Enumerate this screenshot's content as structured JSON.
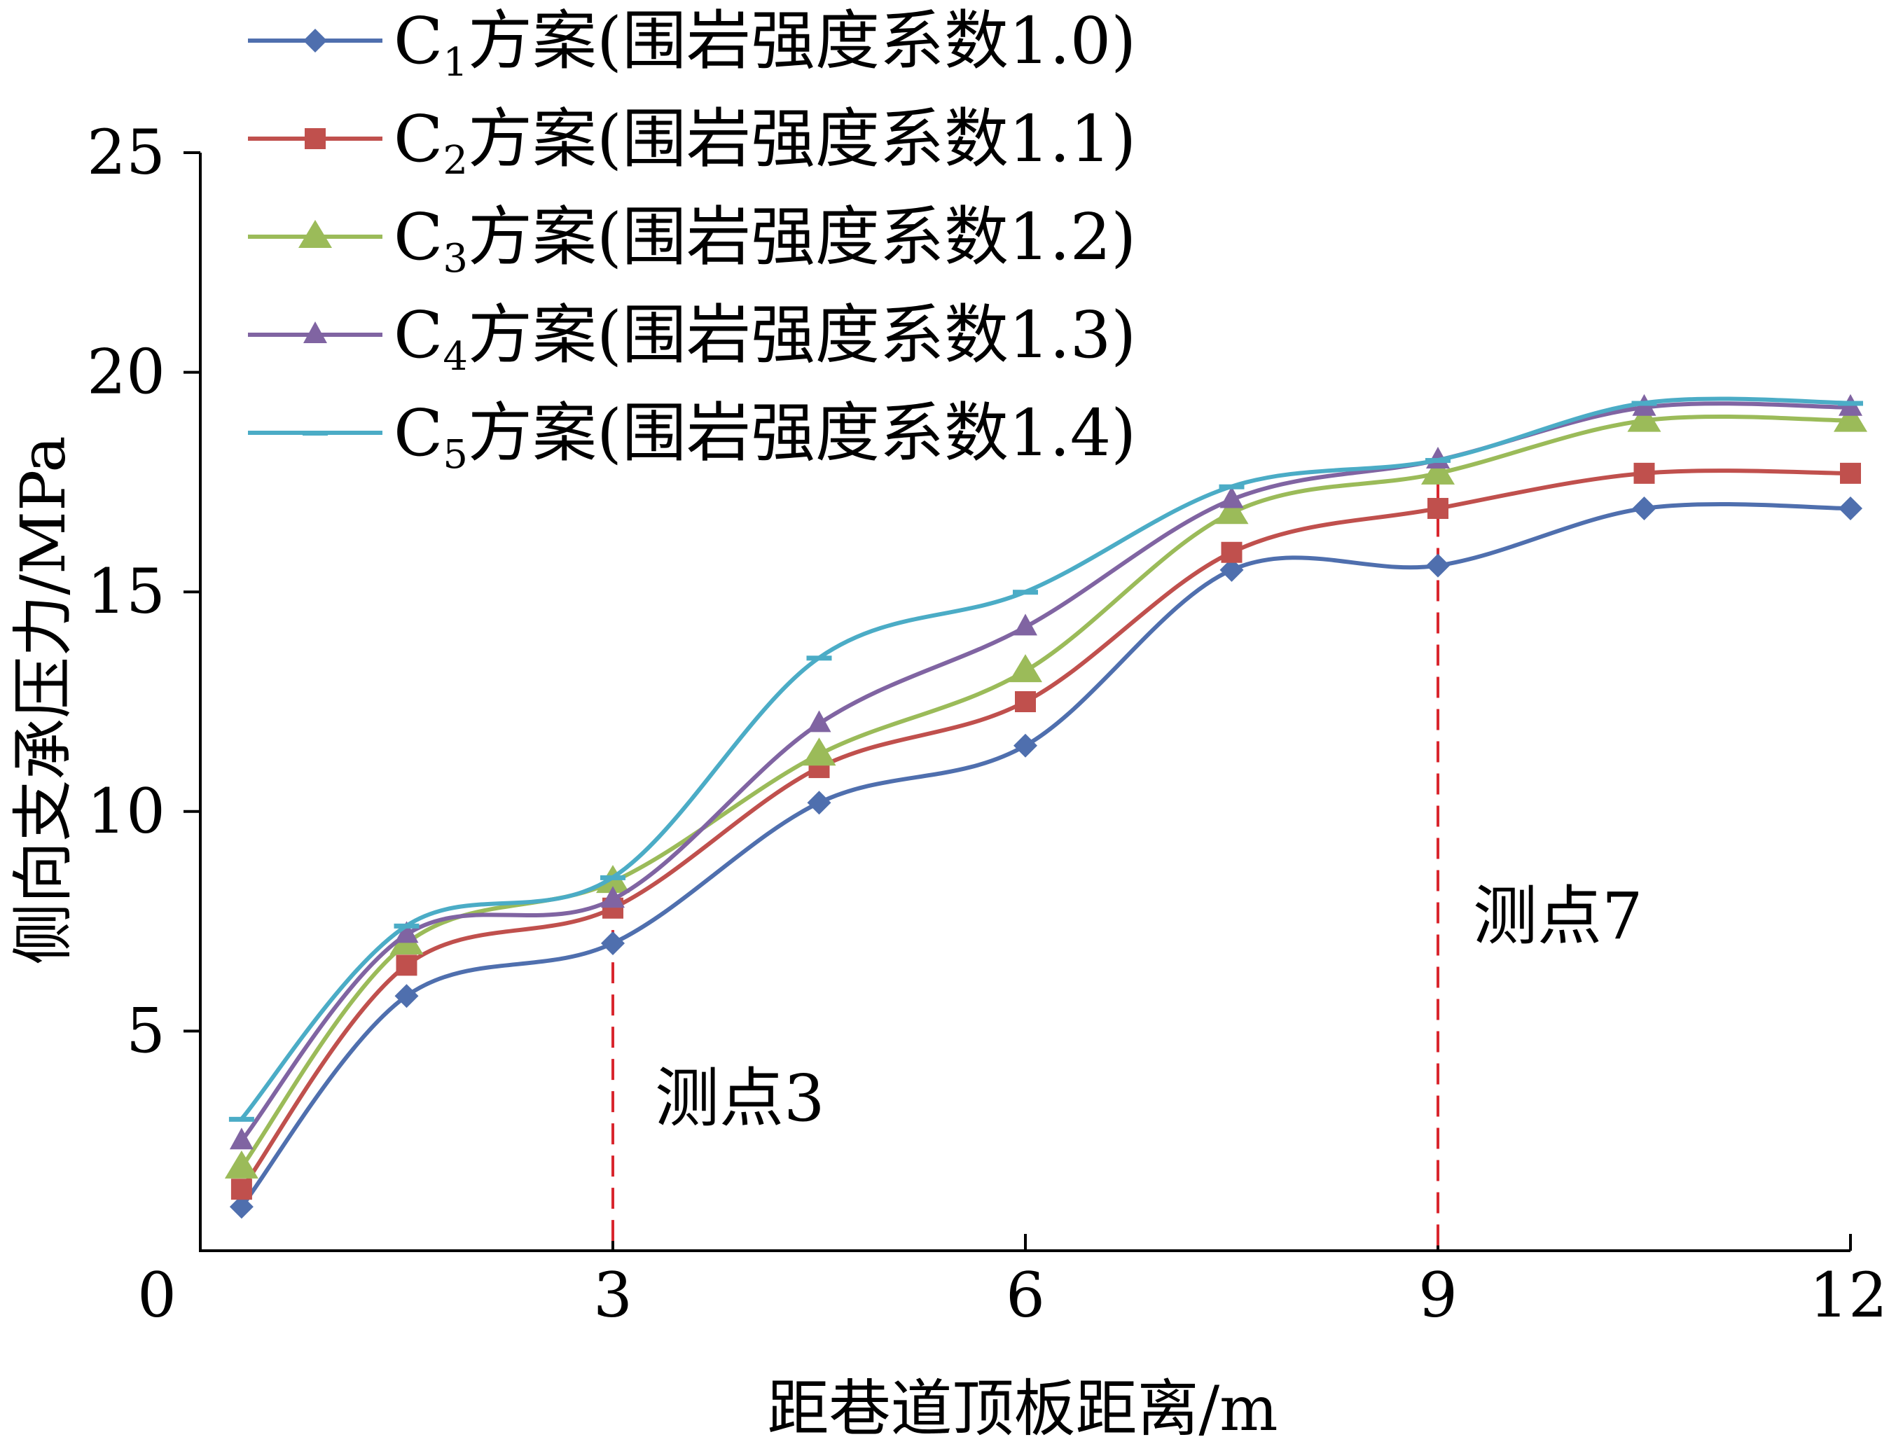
{
  "chart_data": {
    "type": "line",
    "title": "",
    "xlabel": "距巷道顶板距离/m",
    "ylabel": "侧向支承压力/MPa",
    "xlim": [
      0,
      12
    ],
    "ylim": [
      0,
      25
    ],
    "xticks": [
      0,
      3,
      6,
      9,
      12
    ],
    "yticks": [
      5,
      10,
      15,
      20,
      25
    ],
    "grid": false,
    "legend_position": "top-left",
    "x": [
      0,
      1.5,
      3,
      4.5,
      6,
      7.5,
      9,
      10.5,
      12
    ],
    "series": [
      {
        "name_prefix": "C",
        "name_sub": "1",
        "name_suffix": "方案(围岩强度系数1.0)",
        "color": "#4F6FAE",
        "marker": "diamond",
        "values": [
          1.0,
          5.8,
          7.0,
          10.2,
          11.5,
          15.5,
          15.6,
          16.9,
          16.9
        ]
      },
      {
        "name_prefix": "C",
        "name_sub": "2",
        "name_suffix": "方案(围岩强度系数1.1)",
        "color": "#C0504D",
        "marker": "square",
        "values": [
          1.4,
          6.5,
          7.8,
          11.0,
          12.5,
          15.9,
          16.9,
          17.7,
          17.7
        ]
      },
      {
        "name_prefix": "C",
        "name_sub": "3",
        "name_suffix": "方案(围岩强度系数1.2)",
        "color": "#9BBB59",
        "marker": "triangle",
        "values": [
          1.9,
          7.0,
          8.4,
          11.3,
          13.2,
          16.8,
          17.7,
          18.9,
          18.9
        ]
      },
      {
        "name_prefix": "C",
        "name_sub": "4",
        "name_suffix": "方案(围岩强度系数1.3)",
        "color": "#8064A2",
        "marker": "triangle-small",
        "values": [
          2.5,
          7.2,
          8.0,
          12.0,
          14.2,
          17.1,
          18.0,
          19.2,
          19.2
        ]
      },
      {
        "name_prefix": "C",
        "name_sub": "5",
        "name_suffix": "方案(围岩强度系数1.4)",
        "color": "#4BACC6",
        "marker": "dash",
        "values": [
          3.0,
          7.4,
          8.5,
          13.5,
          15.0,
          17.4,
          18.0,
          19.3,
          19.3
        ]
      }
    ],
    "reference_lines": [
      {
        "x": 9,
        "label": "测点7",
        "color": "#D9262E"
      },
      {
        "x": 3,
        "label": "测点3",
        "color": "#D9262E"
      }
    ]
  }
}
